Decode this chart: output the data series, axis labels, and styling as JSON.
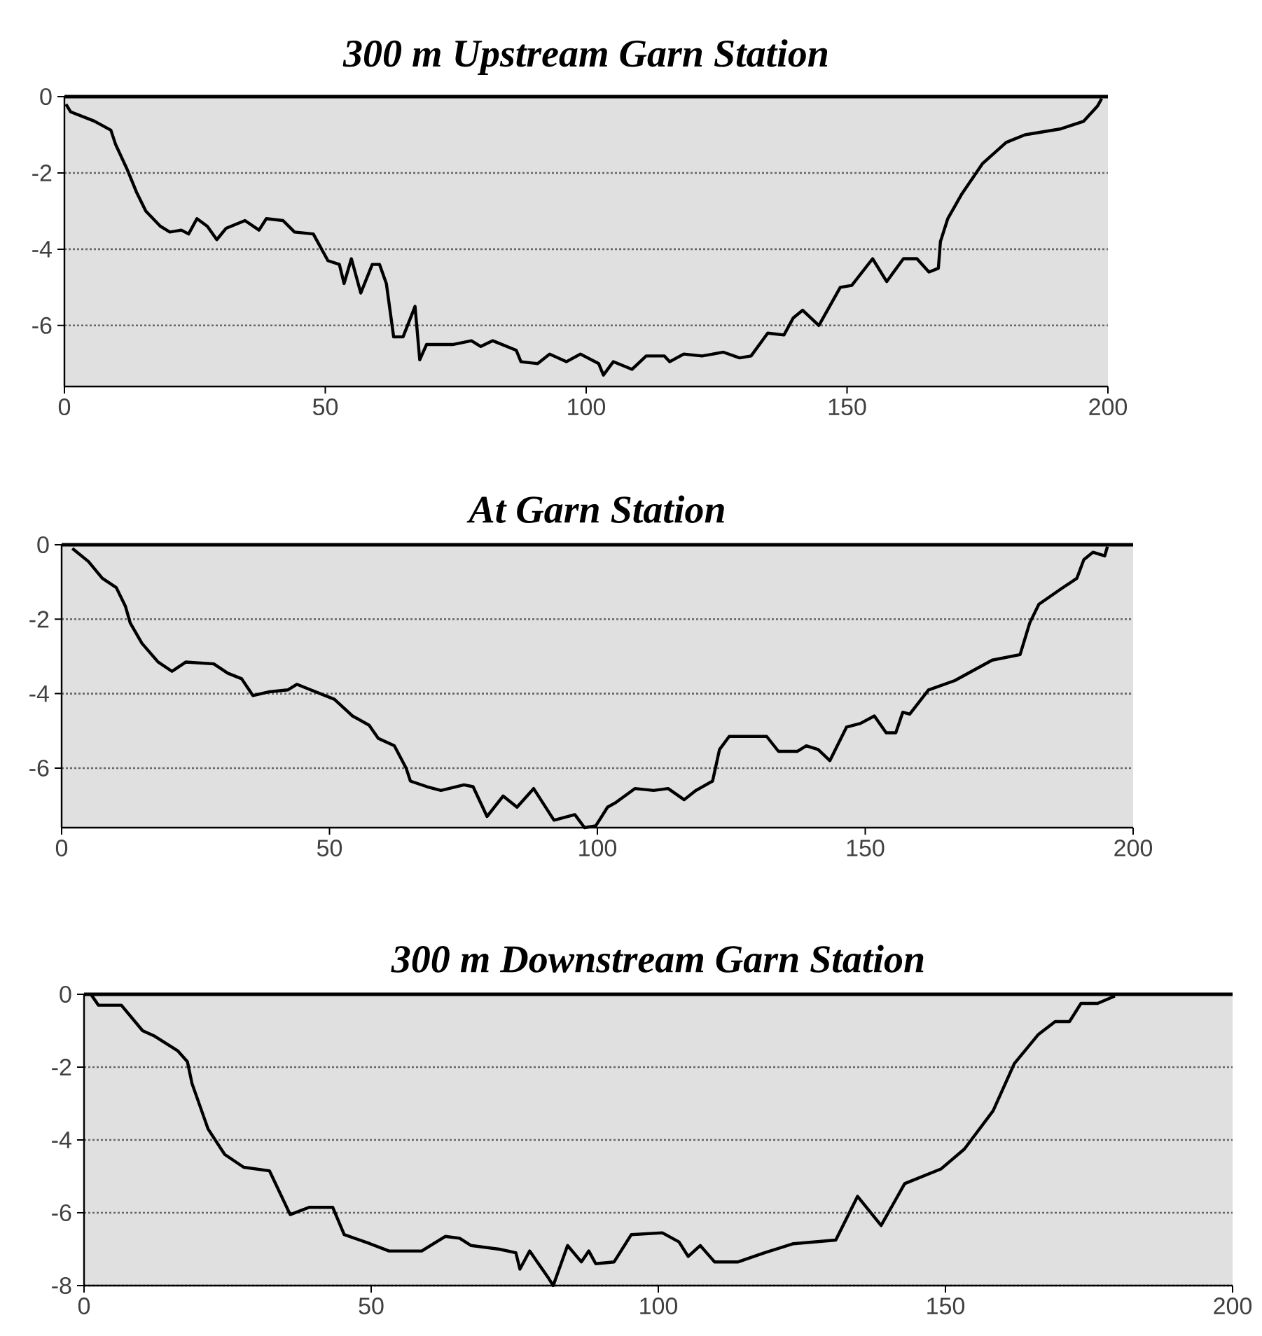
{
  "chart_data": [
    {
      "type": "line",
      "title": "300 m Upstream Garn Station",
      "color": "#000000",
      "grid": "y",
      "xlim": [
        0,
        200
      ],
      "ylim": [
        -7.6,
        0
      ],
      "xticks": [
        0,
        50,
        100,
        150,
        200
      ],
      "yticks": [
        0,
        -2,
        -4,
        -6
      ],
      "ref_lines": [
        {
          "axis": "y",
          "value": 0,
          "color": "#000000"
        }
      ],
      "x": [
        0.3,
        1.2,
        5.7,
        8.9,
        9.8,
        12,
        13.8,
        15.6,
        18.4,
        20.2,
        22.4,
        23.8,
        25.4,
        27.4,
        29.2,
        31,
        34.6,
        37.3,
        38.7,
        41.9,
        44.1,
        47.7,
        50.5,
        52.7,
        53.6,
        55,
        56.8,
        59,
        60.4,
        61.7,
        63.1,
        64.9,
        67.2,
        68.1,
        69.4,
        74.4,
        78,
        79.8,
        82.1,
        86.6,
        87.5,
        90.7,
        93,
        96.2,
        98.9,
        102.4,
        103.3,
        105.2,
        108.8,
        111.5,
        115,
        116,
        118.7,
        122.2,
        126.3,
        129.4,
        131.6,
        134.8,
        137.9,
        139.7,
        141.5,
        144.6,
        148.7,
        150.9,
        154.9,
        157.6,
        160.8,
        163.4,
        165.7,
        167.5,
        167.9,
        169.3,
        172,
        176,
        180.5,
        184.1,
        190.8,
        195.3,
        198,
        198.8
      ],
      "values": [
        -0.2,
        -0.4,
        -0.64,
        -0.88,
        -1.25,
        -1.9,
        -2.5,
        -3.0,
        -3.4,
        -3.55,
        -3.5,
        -3.6,
        -3.2,
        -3.4,
        -3.75,
        -3.45,
        -3.25,
        -3.5,
        -3.2,
        -3.25,
        -3.55,
        -3.6,
        -4.3,
        -4.4,
        -4.9,
        -4.25,
        -5.15,
        -4.4,
        -4.4,
        -4.9,
        -6.3,
        -6.3,
        -5.5,
        -6.9,
        -6.5,
        -6.5,
        -6.4,
        -6.55,
        -6.4,
        -6.65,
        -6.95,
        -7.0,
        -6.75,
        -6.95,
        -6.75,
        -7.0,
        -7.3,
        -6.95,
        -7.15,
        -6.8,
        -6.8,
        -6.95,
        -6.75,
        -6.8,
        -6.7,
        -6.85,
        -6.8,
        -6.2,
        -6.25,
        -5.8,
        -5.6,
        -6.0,
        -5.0,
        -4.95,
        -4.25,
        -4.85,
        -4.25,
        -4.25,
        -4.6,
        -4.5,
        -3.8,
        -3.2,
        -2.55,
        -1.75,
        -1.2,
        -1.0,
        -0.85,
        -0.65,
        -0.25,
        -0.05
      ]
    },
    {
      "type": "line",
      "title": "At Garn Station",
      "color": "#000000",
      "grid": "y",
      "xlim": [
        0,
        200
      ],
      "ylim": [
        -7.6,
        0
      ],
      "xticks": [
        0,
        50,
        100,
        150,
        200
      ],
      "yticks": [
        0,
        -2,
        -4,
        -6
      ],
      "ref_lines": [
        {
          "axis": "y",
          "value": 0,
          "color": "#000000"
        }
      ],
      "x": [
        2,
        5,
        7.6,
        10.2,
        11.9,
        12.8,
        15,
        18,
        20.6,
        23.2,
        28.4,
        31,
        33.6,
        35.7,
        38.8,
        42.2,
        43.9,
        46.5,
        50.9,
        54.3,
        57.4,
        59.1,
        62.1,
        64.3,
        65.1,
        68.2,
        70.8,
        75.1,
        76.8,
        79.4,
        82.4,
        85,
        88.1,
        91.9,
        95.8,
        97.6,
        99.7,
        101.9,
        103.5,
        107,
        110.5,
        113.2,
        116.2,
        118.4,
        121.5,
        122.8,
        124.6,
        131.6,
        133.8,
        137.3,
        139,
        141.2,
        143.4,
        146.5,
        149.1,
        151.7,
        153.9,
        155.7,
        157,
        158.3,
        161.8,
        166.7,
        173.7,
        178.9,
        180.7,
        182.4,
        186.4,
        189.5,
        190.8,
        192.5,
        194.7,
        195.2
      ],
      "values": [
        -0.1,
        -0.45,
        -0.9,
        -1.15,
        -1.65,
        -2.1,
        -2.65,
        -3.15,
        -3.4,
        -3.15,
        -3.2,
        -3.45,
        -3.6,
        -4.05,
        -3.95,
        -3.9,
        -3.75,
        -3.9,
        -4.15,
        -4.6,
        -4.85,
        -5.2,
        -5.4,
        -6.0,
        -6.35,
        -6.5,
        -6.6,
        -6.45,
        -6.5,
        -7.3,
        -6.75,
        -7.05,
        -6.55,
        -7.4,
        -7.25,
        -7.6,
        -7.55,
        -7.05,
        -6.92,
        -6.55,
        -6.6,
        -6.55,
        -6.85,
        -6.6,
        -6.35,
        -5.5,
        -5.15,
        -5.15,
        -5.55,
        -5.55,
        -5.4,
        -5.5,
        -5.8,
        -4.9,
        -4.8,
        -4.6,
        -5.05,
        -5.05,
        -4.5,
        -4.55,
        -3.9,
        -3.65,
        -3.1,
        -2.95,
        -2.1,
        -1.6,
        -1.2,
        -0.9,
        -0.4,
        -0.2,
        -0.3,
        -0.05
      ]
    },
    {
      "type": "line",
      "title": "300 m Downstream Garn Station",
      "color": "#000000",
      "grid": "y",
      "xlim": [
        0,
        200
      ],
      "ylim": [
        -8,
        0
      ],
      "xticks": [
        0,
        50,
        100,
        150,
        200
      ],
      "yticks": [
        0,
        -2,
        -4,
        -6,
        -8
      ],
      "ref_lines": [
        {
          "axis": "y",
          "value": 0,
          "color": "#000000"
        }
      ],
      "x": [
        1.2,
        2.5,
        6.5,
        10.2,
        12.3,
        16.3,
        18,
        18.8,
        21.6,
        24.5,
        27.8,
        32.3,
        35.9,
        39.2,
        43.3,
        45.3,
        49.8,
        53.1,
        58.8,
        62.9,
        65.4,
        67.4,
        72.3,
        75.2,
        75.9,
        77.6,
        80.9,
        81.7,
        84.2,
        86.6,
        87.9,
        89.1,
        92.3,
        95.3,
        100.7,
        103.6,
        105.2,
        107.3,
        109.8,
        113.9,
        118.5,
        123.5,
        130.9,
        134.7,
        138.8,
        142.9,
        149.2,
        153.3,
        158.3,
        162,
        166.2,
        169.1,
        171.6,
        173.6,
        176.5,
        179.5
      ],
      "values": [
        0,
        -0.3,
        -0.3,
        -1.0,
        -1.15,
        -1.55,
        -1.85,
        -2.45,
        -3.7,
        -4.4,
        -4.75,
        -4.85,
        -6.05,
        -5.85,
        -5.85,
        -6.6,
        -6.85,
        -7.05,
        -7.05,
        -6.65,
        -6.7,
        -6.9,
        -7.0,
        -7.1,
        -7.55,
        -7.05,
        -7.8,
        -8.0,
        -6.9,
        -7.35,
        -7.05,
        -7.4,
        -7.35,
        -6.6,
        -6.55,
        -6.8,
        -7.2,
        -6.9,
        -7.35,
        -7.35,
        -7.1,
        -6.85,
        -6.75,
        -5.55,
        -6.35,
        -5.2,
        -4.8,
        -4.25,
        -3.2,
        -1.9,
        -1.1,
        -0.75,
        -0.75,
        -0.25,
        -0.25,
        -0.05
      ]
    }
  ]
}
